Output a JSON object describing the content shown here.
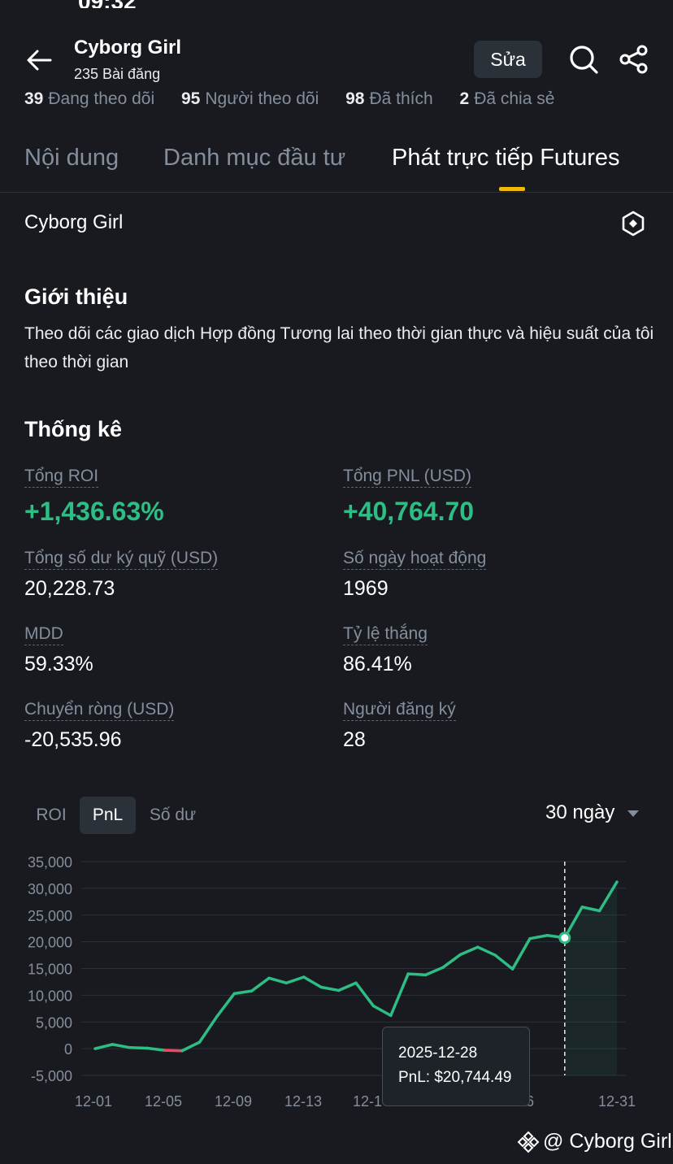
{
  "status": {
    "time": "09:32"
  },
  "header": {
    "name": "Cyborg Girl",
    "posts": "235 Bài đăng",
    "edit_label": "Sửa",
    "stats": [
      {
        "value": "39",
        "label": "Đang theo dõi"
      },
      {
        "value": "95",
        "label": "Người theo dõi"
      },
      {
        "value": "98",
        "label": "Đã thích"
      },
      {
        "value": "2",
        "label": "Đã chia sẻ"
      }
    ]
  },
  "tabs": [
    "Nội dung",
    "Danh mục đầu tư",
    "Phát trực tiếp Futures"
  ],
  "active_tab": 2,
  "portfolio_name": "Cyborg Girl",
  "intro": {
    "title": "Giới thiệu",
    "text": "Theo dõi các giao dịch Hợp đồng Tương lai theo thời gian thực và hiệu suất của tôi theo thời gian"
  },
  "stats": {
    "title": "Thống kê",
    "items": [
      {
        "label": "Tổng ROI",
        "value": "+1,436.63%",
        "highlight": true
      },
      {
        "label": "Tổng PNL (USD)",
        "value": "+40,764.70",
        "highlight": true
      },
      {
        "label": "Tổng số dư ký quỹ (USD)",
        "value": "20,228.73"
      },
      {
        "label": "Số ngày hoạt động",
        "value": "1969"
      },
      {
        "label": "MDD",
        "value": "59.33%"
      },
      {
        "label": "Tỷ lệ thắng",
        "value": "86.41%"
      },
      {
        "label": "Chuyển ròng (USD)",
        "value": "-20,535.96"
      },
      {
        "label": "Người đăng ký",
        "value": "28"
      }
    ]
  },
  "chart_tabs": [
    "ROI",
    "PnL",
    "Số dư"
  ],
  "chart_active_tab": 1,
  "range": "30 ngày",
  "tooltip": {
    "date": "2025-12-28",
    "value": "PnL: $20,744.49"
  },
  "watermark": "@ Cyborg Girl",
  "colors": {
    "bg": "#181a20",
    "positive": "#2ebd85",
    "negative": "#f6465d",
    "accent": "#f0b90b"
  },
  "chart_data": {
    "type": "line",
    "x": [
      "12-01",
      "12-02",
      "12-03",
      "12-04",
      "12-05",
      "12-06",
      "12-07",
      "12-08",
      "12-09",
      "12-10",
      "12-11",
      "12-12",
      "12-13",
      "12-14",
      "12-15",
      "12-16",
      "12-17",
      "12-18",
      "12-19",
      "12-20",
      "12-21",
      "12-22",
      "12-23",
      "12-24",
      "12-25",
      "12-26",
      "12-27",
      "12-28",
      "12-29",
      "12-30",
      "12-31"
    ],
    "series": [
      {
        "values": [
          0,
          800,
          200,
          100,
          -300,
          -400,
          1200,
          6000,
          10300,
          10800,
          13200,
          12300,
          13400,
          11500,
          10900,
          12300,
          8000,
          6200,
          14000,
          13800,
          15200,
          17600,
          19000,
          17500,
          14900,
          20600,
          21200,
          20744.49,
          26500,
          25800,
          31200
        ]
      }
    ],
    "yticks": [
      35000,
      30000,
      25000,
      20000,
      15000,
      10000,
      5000,
      0,
      -5000
    ],
    "ytick_labels": [
      "35,000",
      "30,000",
      "25,000",
      "20,000",
      "15,000",
      "10,000",
      "5,000",
      "0",
      "-5,000"
    ],
    "xtick_labels": [
      "12-01",
      "12-05",
      "12-09",
      "12-13",
      "12-1",
      "6",
      "12-31"
    ],
    "ylim": [
      -5000,
      35000
    ],
    "highlight_index": 27,
    "grid": true
  }
}
